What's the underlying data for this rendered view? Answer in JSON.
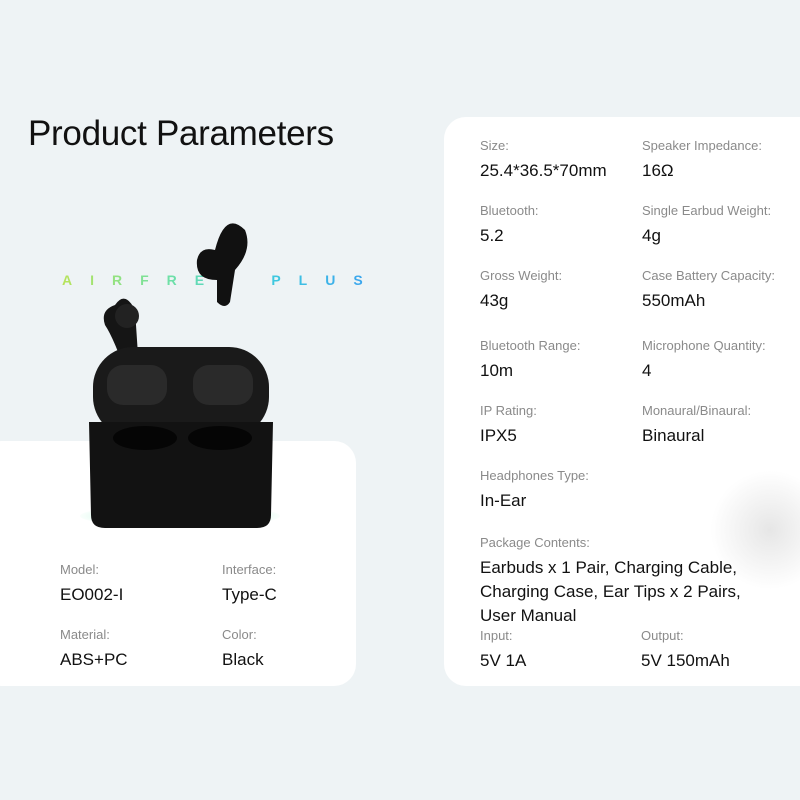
{
  "title": "Product Parameters",
  "logo_text": "AIRFREE PLUS",
  "left_specs": [
    {
      "label": "Model:",
      "value": "EO002-I"
    },
    {
      "label": "Interface:",
      "value": "Type-C"
    },
    {
      "label": "Material:",
      "value": "ABS+PC"
    },
    {
      "label": "Color:",
      "value": "Black"
    }
  ],
  "right_specs": [
    {
      "label": "Size:",
      "value": "25.4*36.5*70mm"
    },
    {
      "label": "Speaker Impedance:",
      "value": "16Ω"
    },
    {
      "label": "Bluetooth:",
      "value": "5.2"
    },
    {
      "label": "Single Earbud Weight:",
      "value": "4g"
    },
    {
      "label": "Gross Weight:",
      "value": "43g"
    },
    {
      "label": "Case Battery Capacity:",
      "value": "550mAh"
    },
    {
      "label": "Bluetooth Range:",
      "value": "10m"
    },
    {
      "label": "Microphone Quantity:",
      "value": "4"
    },
    {
      "label": "IP Rating:",
      "value": "IPX5"
    },
    {
      "label": "Monaural/Binaural:",
      "value": "Binaural"
    },
    {
      "label": "Headphones Type:",
      "value": "In-Ear"
    },
    {
      "label": "Package Contents:",
      "value": "Earbuds x 1 Pair, Charging Cable, Charging Case, Ear Tips x 2 Pairs, User Manual"
    },
    {
      "label": "Input:",
      "value": "5V 1A"
    },
    {
      "label": "Output:",
      "value": "5V 150mAh"
    }
  ]
}
